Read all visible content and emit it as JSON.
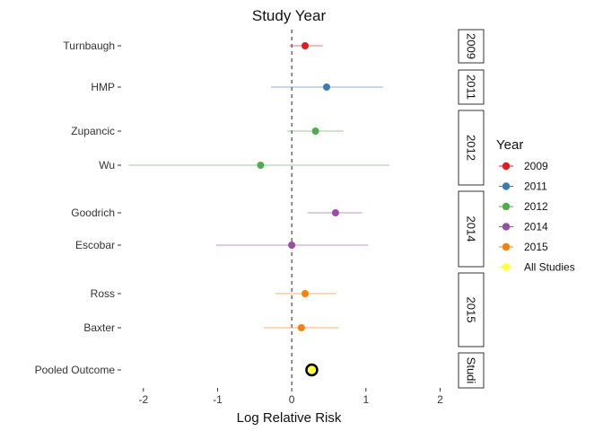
{
  "chart_data": {
    "type": "scatter",
    "subtype": "forest-plot",
    "title": "Study Year",
    "xlabel": "Log Relative Risk",
    "ylabel": "",
    "xlim": [
      -2.3,
      2.2
    ],
    "xticks": [
      -2,
      -1,
      0,
      1,
      2
    ],
    "reference_line": 0,
    "grid": false,
    "legend": {
      "title": "Year",
      "placement": "right",
      "entries": [
        {
          "label": "2009",
          "color": "#E41A1C"
        },
        {
          "label": "2011",
          "color": "#377EB8"
        },
        {
          "label": "2012",
          "color": "#4DAF4A"
        },
        {
          "label": "2014",
          "color": "#984EA3"
        },
        {
          "label": "2015",
          "color": "#FF7F00"
        },
        {
          "label": "All Studies",
          "color": "#FFFF33"
        }
      ]
    },
    "facets": [
      {
        "label": "2009",
        "color": "#E41A1C",
        "studies": [
          {
            "name": "Turnbaugh",
            "estimate": 0.18,
            "lower": -0.03,
            "upper": 0.42
          }
        ]
      },
      {
        "label": "2011",
        "color": "#377EB8",
        "studies": [
          {
            "name": "HMP",
            "estimate": 0.47,
            "lower": -0.28,
            "upper": 1.23
          }
        ]
      },
      {
        "label": "2012",
        "color": "#4DAF4A",
        "studies": [
          {
            "name": "Zupancic",
            "estimate": 0.32,
            "lower": -0.06,
            "upper": 0.7
          },
          {
            "name": "Wu",
            "estimate": -0.42,
            "lower": -2.2,
            "upper": 1.32
          }
        ]
      },
      {
        "label": "2014",
        "color": "#984EA3",
        "studies": [
          {
            "name": "Goodrich",
            "estimate": 0.59,
            "lower": 0.21,
            "upper": 0.95
          },
          {
            "name": "Escobar",
            "estimate": 0.0,
            "lower": -1.02,
            "upper": 1.03
          }
        ]
      },
      {
        "label": "2015",
        "color": "#FF7F00",
        "studies": [
          {
            "name": "Ross",
            "estimate": 0.18,
            "lower": -0.22,
            "upper": 0.6
          },
          {
            "name": "Baxter",
            "estimate": 0.13,
            "lower": -0.38,
            "upper": 0.63
          }
        ]
      },
      {
        "label": "Studi",
        "color": "#FFFF33",
        "studies": [
          {
            "name": "Pooled Outcome",
            "estimate": 0.27,
            "lower": 0.2,
            "upper": 0.34
          }
        ]
      }
    ]
  }
}
